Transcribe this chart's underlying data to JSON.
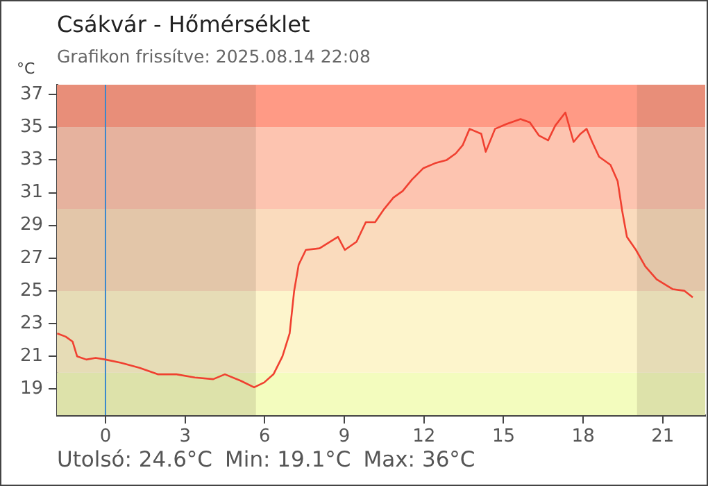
{
  "chart_data": {
    "type": "line",
    "title": "Csákvár - Hőmérséklet",
    "subtitle": "Grafikon frissítve: 2025.08.14 22:08",
    "ylabel": "°C",
    "annotations": [
      "Utolsó: 24.6°C",
      "Min: 19.1°C",
      "Max: 36°C"
    ],
    "xlim": [
      -1.83,
      22.6
    ],
    "ylim": [
      17.4,
      37.6
    ],
    "xticks": [
      0,
      3,
      6,
      9,
      12,
      15,
      18,
      21
    ],
    "yticks": [
      19,
      21,
      23,
      25,
      27,
      29,
      31,
      33,
      35,
      37
    ],
    "grid": false,
    "legend": false,
    "bands": [
      {
        "axis": "y",
        "from": 17.4,
        "to": 20,
        "color": "#f3fcbe"
      },
      {
        "axis": "y",
        "from": 20,
        "to": 25,
        "color": "#fdf5cc"
      },
      {
        "axis": "y",
        "from": 25,
        "to": 30,
        "color": "#fadbbd"
      },
      {
        "axis": "y",
        "from": 30,
        "to": 35,
        "color": "#fdc4b0"
      },
      {
        "axis": "y",
        "from": 35,
        "to": 37.6,
        "color": "#ff9a85"
      },
      {
        "axis": "x",
        "from": -1.83,
        "to": 5.67,
        "color": "#5a4632"
      },
      {
        "axis": "x",
        "from": 20.03,
        "to": 22.6,
        "color": "#5a4632"
      }
    ],
    "ref_lines": [
      {
        "axis": "x",
        "value": 0,
        "color": "#3a88cc"
      }
    ],
    "series": [
      {
        "color": "#f04030",
        "x": [
          -1.82,
          -1.5,
          -1.24,
          -1.07,
          -0.72,
          -0.37,
          0,
          0.58,
          1.28,
          1.97,
          2.67,
          3.37,
          4.06,
          4.5,
          5.1,
          5.6,
          5.98,
          6.33,
          6.67,
          6.94,
          7.11,
          7.28,
          7.55,
          8.07,
          8.76,
          9.02,
          9.46,
          9.81,
          10.16,
          10.5,
          10.85,
          11.2,
          11.55,
          11.98,
          12.42,
          12.86,
          13.2,
          13.46,
          13.72,
          14.16,
          14.33,
          14.68,
          15.12,
          15.64,
          15.99,
          16.33,
          16.68,
          16.95,
          17.33,
          17.64,
          17.9,
          18.13,
          18.34,
          18.6,
          19.03,
          19.3,
          19.47,
          19.65,
          19.99,
          20.34,
          20.77,
          21.38,
          21.82,
          22.13
        ],
        "values": [
          22.4,
          22.2,
          21.9,
          21.0,
          20.8,
          20.9,
          20.8,
          20.6,
          20.3,
          19.9,
          19.9,
          19.7,
          19.6,
          19.9,
          19.5,
          19.1,
          19.4,
          19.9,
          21.0,
          22.4,
          25.0,
          26.6,
          27.5,
          27.6,
          28.3,
          27.5,
          28.0,
          29.2,
          29.2,
          30.0,
          30.7,
          31.1,
          31.8,
          32.5,
          32.8,
          33.0,
          33.4,
          33.9,
          34.9,
          34.6,
          33.5,
          34.9,
          35.2,
          35.5,
          35.3,
          34.5,
          34.2,
          35.1,
          35.9,
          34.1,
          34.6,
          34.9,
          34.1,
          33.2,
          32.7,
          31.7,
          29.9,
          28.3,
          27.5,
          26.5,
          25.7,
          25.1,
          25.0,
          24.6
        ]
      }
    ]
  }
}
